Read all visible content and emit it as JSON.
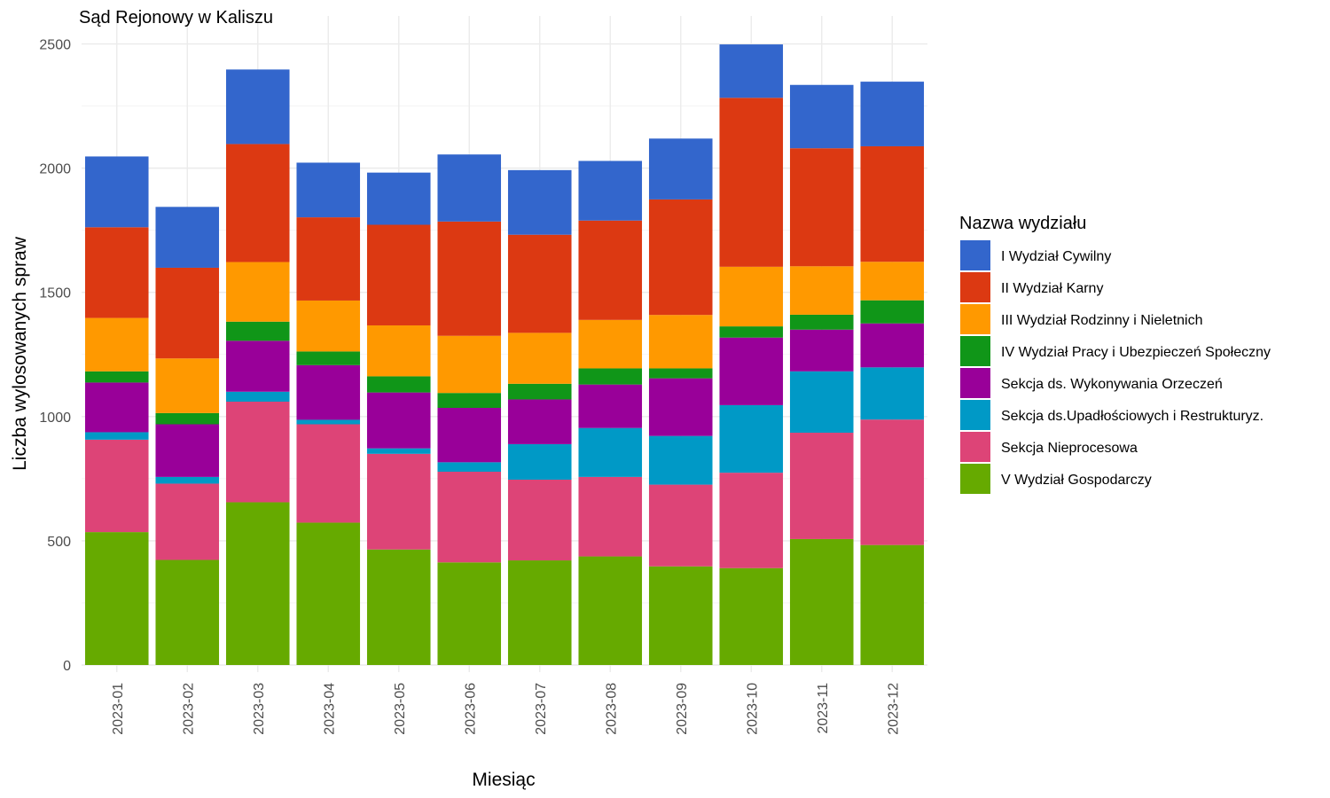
{
  "chart_data": {
    "type": "bar",
    "stacked": true,
    "title": "Sąd Rejonowy w Kaliszu",
    "xlabel": "Miesiąc",
    "ylabel": "Liczba wylosowanych spraw",
    "ylim": [
      0,
      2500
    ],
    "yticks": [
      0,
      500,
      1000,
      1500,
      2000,
      2500
    ],
    "grid": true,
    "legend_title": "Nazwa wydziału",
    "legend_position": "right",
    "categories": [
      "2023-01",
      "2023-02",
      "2023-03",
      "2023-04",
      "2023-05",
      "2023-06",
      "2023-07",
      "2023-08",
      "2023-09",
      "2023-10",
      "2023-11",
      "2023-12"
    ],
    "series": [
      {
        "name": "V Wydział Gospodarczy",
        "color": "#66AA00",
        "values": [
          535,
          423,
          655,
          573,
          465,
          413,
          421,
          437,
          397,
          390,
          507,
          483
        ]
      },
      {
        "name": "Sekcja Nieprocesowa",
        "color": "#DD4477",
        "values": [
          372,
          307,
          405,
          396,
          385,
          365,
          325,
          320,
          329,
          384,
          428,
          505
        ]
      },
      {
        "name": "Sekcja ds.Upadłościowych i Restrukturyz.",
        "color": "#0099C6",
        "values": [
          30,
          27,
          40,
          18,
          22,
          38,
          143,
          197,
          196,
          272,
          247,
          210
        ]
      },
      {
        "name": "Sekcja ds. Wykonywania Orzeczeń",
        "color": "#990099",
        "values": [
          200,
          212,
          205,
          220,
          225,
          219,
          180,
          175,
          232,
          272,
          168,
          177
        ]
      },
      {
        "name": "IV Wydział Pracy i Ubezpieczeń Społeczny",
        "color": "#109618",
        "values": [
          45,
          45,
          77,
          55,
          65,
          60,
          63,
          65,
          40,
          45,
          60,
          93
        ]
      },
      {
        "name": "III Wydział Rodzinny i Nieletnich",
        "color": "#FF9900",
        "values": [
          215,
          220,
          240,
          205,
          205,
          230,
          205,
          195,
          215,
          240,
          195,
          155
        ]
      },
      {
        "name": "II Wydział Karny",
        "color": "#DC3912",
        "values": [
          365,
          365,
          475,
          335,
          405,
          460,
          395,
          400,
          465,
          680,
          475,
          465
        ]
      },
      {
        "name": "I Wydział Cywilny",
        "color": "#3366CC",
        "values": [
          285,
          245,
          300,
          220,
          210,
          270,
          260,
          240,
          245,
          215,
          255,
          260
        ]
      }
    ],
    "legend_order": [
      "I Wydział Cywilny",
      "II Wydział Karny",
      "III Wydział Rodzinny i Nieletnich",
      "IV Wydział Pracy i Ubezpieczeń Społeczny",
      "Sekcja ds. Wykonywania Orzeczeń",
      "Sekcja ds.Upadłościowych i Restrukturyz.",
      "Sekcja Nieprocesowa",
      "V Wydział Gospodarczy"
    ]
  }
}
